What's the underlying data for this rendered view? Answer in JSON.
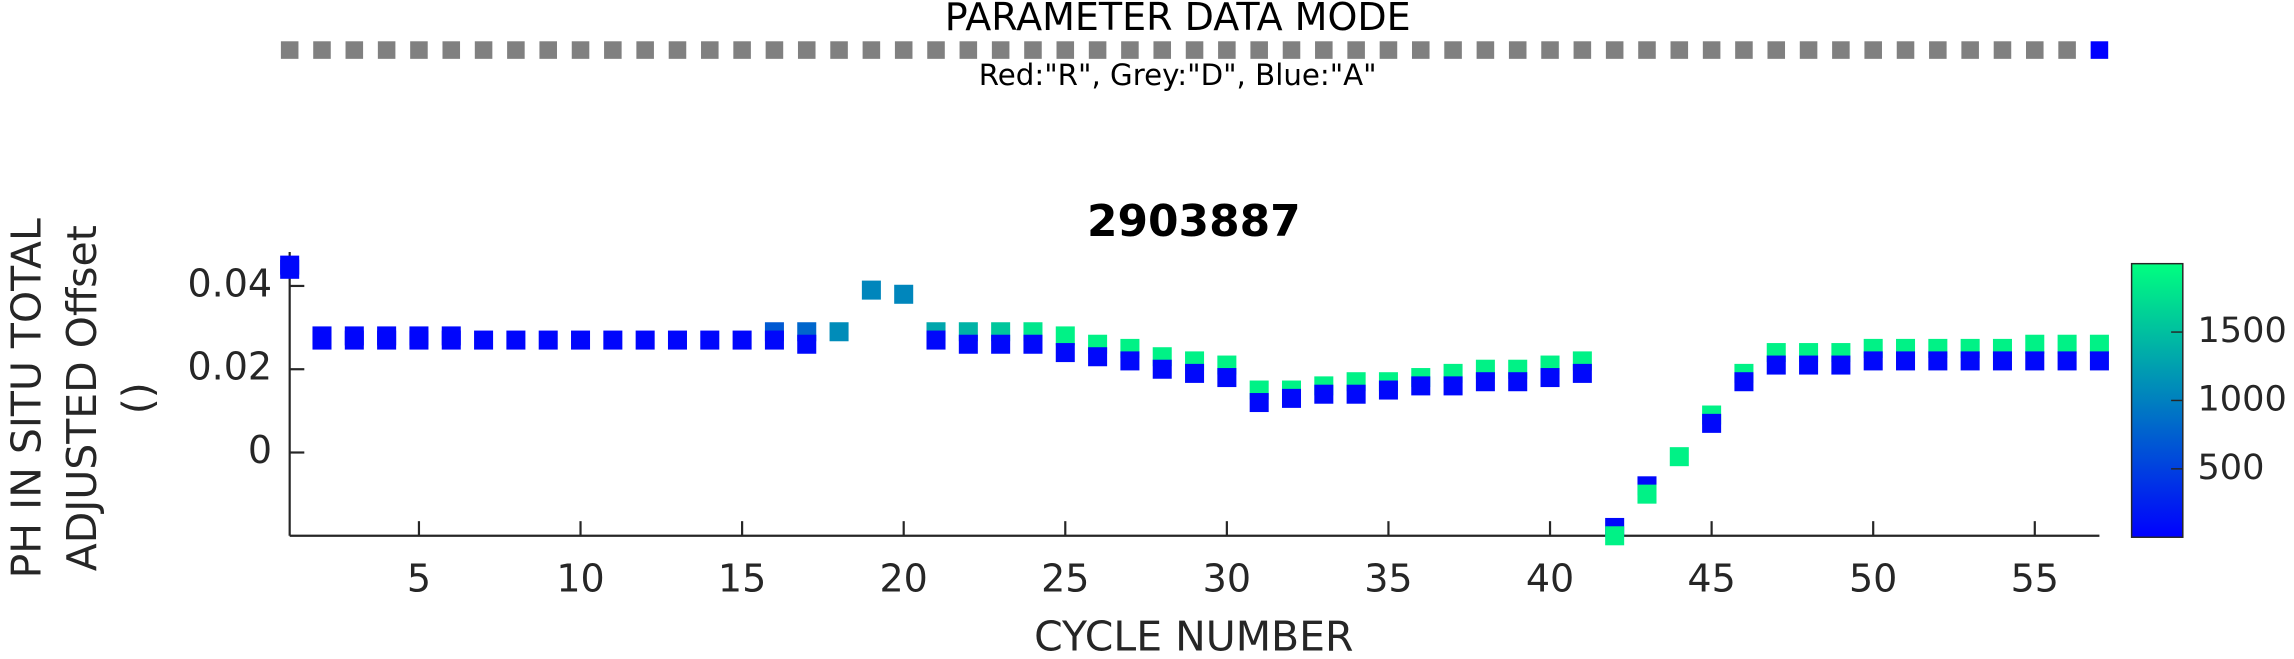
{
  "chart_data": {
    "type": "scatter",
    "mode_title": "PARAMETER DATA MODE",
    "mode_legend": "Red:\"R\", Grey:\"D\", Blue:\"A\"",
    "mode_colors": {
      "R": "#ff0000",
      "D": "#808080",
      "A": "#0000ff"
    },
    "modes": [
      "D",
      "D",
      "D",
      "D",
      "D",
      "D",
      "D",
      "D",
      "D",
      "D",
      "D",
      "D",
      "D",
      "D",
      "D",
      "D",
      "D",
      "D",
      "D",
      "D",
      "D",
      "D",
      "D",
      "D",
      "D",
      "D",
      "D",
      "D",
      "D",
      "D",
      "D",
      "D",
      "D",
      "D",
      "D",
      "D",
      "D",
      "D",
      "D",
      "D",
      "D",
      "D",
      "D",
      "D",
      "D",
      "D",
      "D",
      "D",
      "D",
      "D",
      "D",
      "D",
      "D",
      "D",
      "D",
      "D",
      "A"
    ],
    "title": "2903887",
    "xlabel": "CYCLE NUMBER",
    "ylabel": [
      "PH IN SITU TOTAL",
      "ADJUSTED Offset",
      "()"
    ],
    "colormap": "winter",
    "x": [
      1,
      1,
      2,
      2,
      3,
      3,
      4,
      4,
      5,
      5,
      6,
      6,
      7,
      8,
      9,
      10,
      11,
      12,
      13,
      14,
      15,
      16,
      16,
      17,
      17,
      18,
      19,
      20,
      21,
      21,
      22,
      22,
      23,
      23,
      24,
      24,
      25,
      25,
      26,
      26,
      27,
      27,
      28,
      28,
      29,
      29,
      30,
      30,
      31,
      31,
      32,
      32,
      33,
      33,
      34,
      34,
      35,
      35,
      36,
      36,
      37,
      37,
      38,
      38,
      39,
      39,
      40,
      40,
      41,
      41,
      42,
      42,
      43,
      43,
      44,
      45,
      45,
      46,
      46,
      47,
      47,
      48,
      48,
      49,
      49,
      50,
      50,
      51,
      51,
      52,
      52,
      53,
      53,
      54,
      54,
      55,
      55,
      56,
      56,
      57,
      57
    ],
    "y": [
      0.045,
      0.044,
      0.028,
      0.027,
      0.028,
      0.027,
      0.028,
      0.027,
      0.028,
      0.027,
      0.028,
      0.027,
      0.027,
      0.027,
      0.027,
      0.027,
      0.027,
      0.027,
      0.027,
      0.027,
      0.027,
      0.029,
      0.027,
      0.029,
      0.026,
      0.029,
      0.039,
      0.038,
      0.029,
      0.027,
      0.029,
      0.026,
      0.029,
      0.026,
      0.029,
      0.026,
      0.028,
      0.024,
      0.026,
      0.023,
      0.025,
      0.022,
      0.023,
      0.02,
      0.022,
      0.019,
      0.021,
      0.018,
      0.015,
      0.012,
      0.015,
      0.013,
      0.016,
      0.014,
      0.017,
      0.014,
      0.017,
      0.015,
      0.018,
      0.016,
      0.019,
      0.016,
      0.02,
      0.017,
      0.02,
      0.017,
      0.021,
      0.018,
      0.022,
      0.019,
      -0.018,
      -0.02,
      -0.008,
      -0.01,
      -0.001,
      0.009,
      0.007,
      0.019,
      0.017,
      0.024,
      0.021,
      0.024,
      0.021,
      0.024,
      0.021,
      0.025,
      0.022,
      0.025,
      0.022,
      0.025,
      0.022,
      0.025,
      0.022,
      0.025,
      0.022,
      0.026,
      0.022,
      0.026,
      0.022,
      0.026,
      0.022
    ],
    "pressure": [
      30,
      60,
      60,
      40,
      60,
      40,
      60,
      40,
      60,
      40,
      60,
      40,
      50,
      50,
      50,
      50,
      50,
      50,
      50,
      50,
      50,
      700,
      60,
      800,
      60,
      1100,
      1050,
      1050,
      1300,
      60,
      1400,
      60,
      1550,
      60,
      1800,
      60,
      1900,
      60,
      1900,
      60,
      1900,
      60,
      1900,
      60,
      1900,
      60,
      1900,
      60,
      1900,
      60,
      1900,
      60,
      1900,
      60,
      1900,
      60,
      1900,
      60,
      1900,
      60,
      1900,
      60,
      1900,
      60,
      1900,
      60,
      1900,
      60,
      1900,
      60,
      60,
      1900,
      60,
      1900,
      1900,
      1900,
      60,
      1900,
      60,
      1900,
      60,
      1900,
      60,
      1900,
      60,
      1900,
      60,
      1900,
      60,
      1900,
      60,
      1900,
      60,
      1900,
      60,
      1900,
      60,
      1900,
      60,
      1900,
      60
    ],
    "xlim": [
      1,
      57
    ],
    "xticks": [
      5,
      10,
      15,
      20,
      25,
      30,
      35,
      40,
      45,
      50,
      55
    ],
    "ylim": [
      -0.02,
      0.045
    ],
    "yticks": [
      0,
      0.02,
      0.04
    ],
    "clim": [
      0,
      2000
    ],
    "cticks": [
      500,
      1000,
      1500
    ]
  }
}
